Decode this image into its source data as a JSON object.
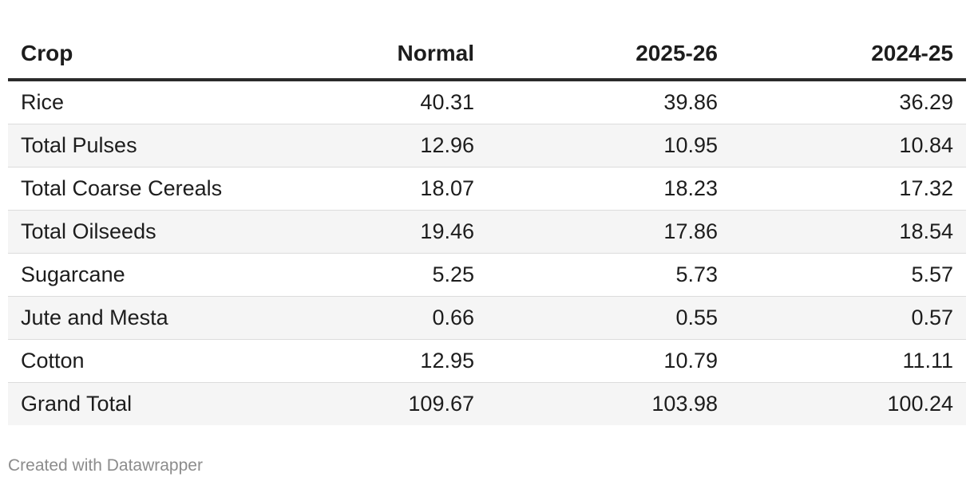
{
  "chart_data": {
    "type": "table",
    "columns": [
      "Crop",
      "Normal",
      "2025-26",
      "2024-25"
    ],
    "rows": [
      [
        "Rice",
        "40.31",
        "39.86",
        "36.29"
      ],
      [
        "Total Pulses",
        "12.96",
        "10.95",
        "10.84"
      ],
      [
        "Total Coarse Cereals",
        "18.07",
        "18.23",
        "17.32"
      ],
      [
        "Total Oilseeds",
        "19.46",
        "17.86",
        "18.54"
      ],
      [
        "Sugarcane",
        "5.25",
        "5.73",
        "5.57"
      ],
      [
        "Jute and Mesta",
        "0.66",
        "0.55",
        "0.57"
      ],
      [
        "Cotton",
        "12.95",
        "10.79",
        "11.11"
      ],
      [
        "Grand Total",
        "109.67",
        "103.98",
        "100.24"
      ]
    ],
    "header_rule_color": "#2b2b2b",
    "stripe_color": "#f5f5f5"
  },
  "footer": {
    "credit": "Created with Datawrapper"
  }
}
